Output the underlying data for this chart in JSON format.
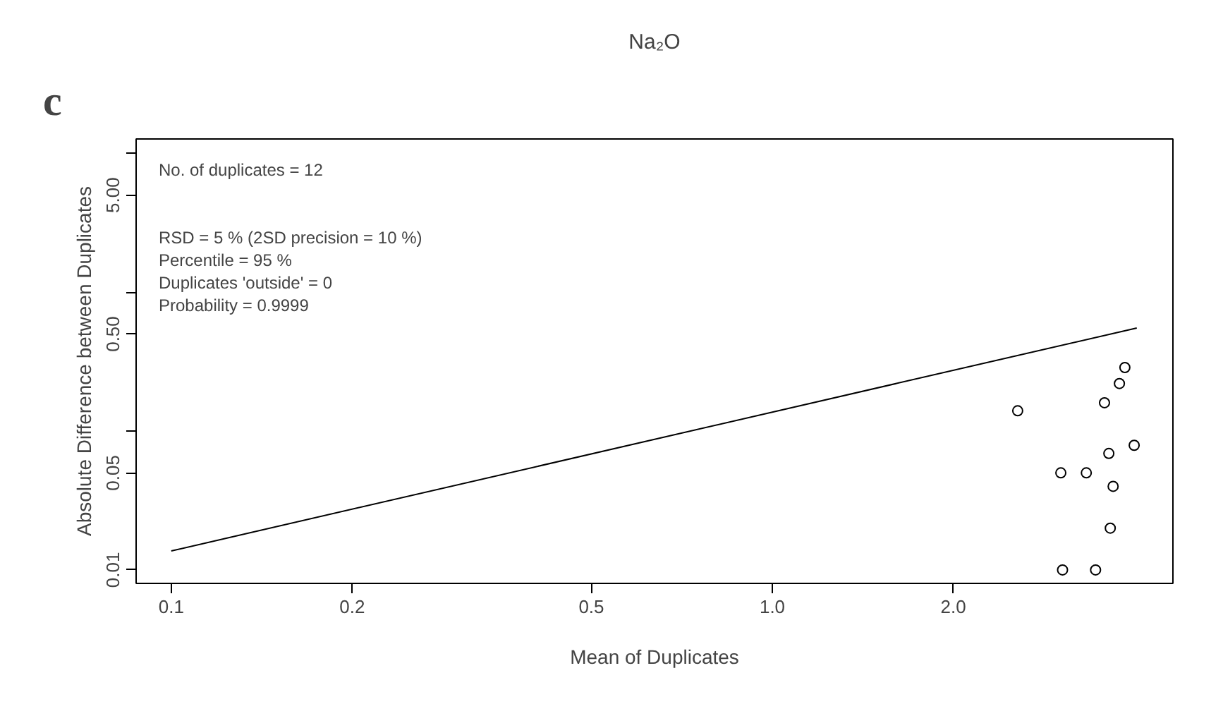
{
  "chart_data": {
    "type": "scatter",
    "title": "Na₂O",
    "xlabel": "Mean of Duplicates",
    "ylabel": "Absolute Difference between Duplicates",
    "log": "xy",
    "grid": false,
    "xlim": [
      0.0874,
      4.64
    ],
    "ylim": [
      0.008,
      12.7
    ],
    "xticks": [
      {
        "value": 0.1,
        "label": "0.1"
      },
      {
        "value": 0.2,
        "label": "0.2"
      },
      {
        "value": 0.5,
        "label": "0.5"
      },
      {
        "value": 1,
        "label": "1.0"
      },
      {
        "value": 2,
        "label": "2.0"
      }
    ],
    "yticks": [
      {
        "value": 0.01,
        "label": "0.01"
      },
      {
        "value": 0.05,
        "label": "0.05"
      },
      {
        "value": 0.1,
        "label": null
      },
      {
        "value": 0.5,
        "label": "0.50"
      },
      {
        "value": 1,
        "label": null
      },
      {
        "value": 5,
        "label": "5.00"
      },
      {
        "value": 10,
        "label": null
      }
    ],
    "annotations": [
      "c",
      "No. of  duplicates = 12",
      "RSD = 5 % (2SD precision = 10 %)",
      "Percentile = 95 %",
      "Duplicates 'outside' = 0",
      "Probability = 0.9999"
    ],
    "series": [
      {
        "type": "line",
        "color": "#000000",
        "x": [
          0.1,
          4.04
        ],
        "values": [
          0.0137,
          0.553
        ]
      },
      {
        "marker": "circle",
        "color": "#000000",
        "x": [
          3.86,
          3.78,
          3.57,
          2.56,
          4.0,
          3.63,
          3.02,
          3.33,
          3.69,
          3.65,
          3.04,
          3.45
        ],
        "values": [
          0.287,
          0.22,
          0.16,
          0.14,
          0.079,
          0.069,
          0.05,
          0.05,
          0.04,
          0.02,
          0.01,
          0.01
        ]
      }
    ]
  }
}
